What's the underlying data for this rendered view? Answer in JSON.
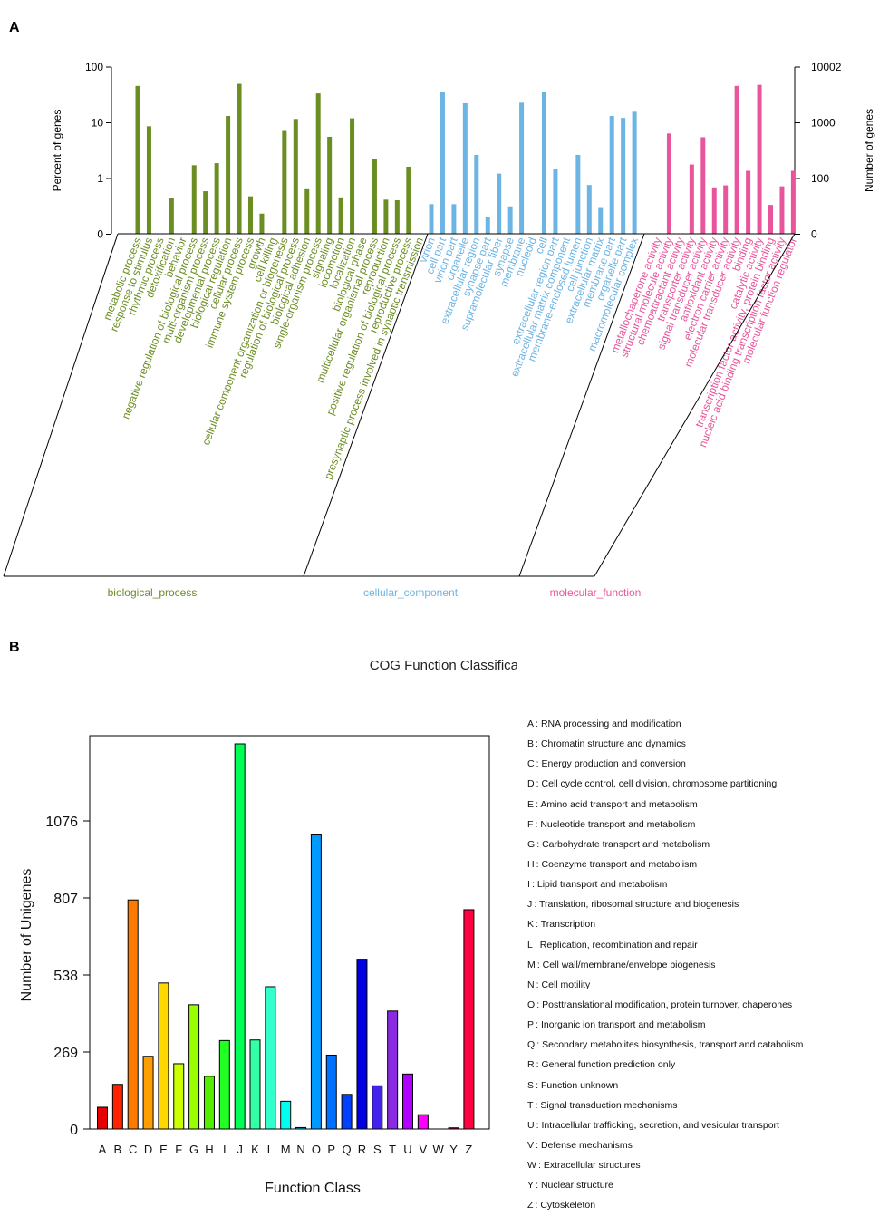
{
  "panel_a": {
    "letter": "A",
    "chart_data": {
      "type": "bar",
      "title": "",
      "ylabel": "Percent of genes",
      "ylabel_right": "Number of genes",
      "yscale": "log",
      "y_ticks": [
        "100",
        "10",
        "1",
        "0"
      ],
      "y_ticks_right": [
        "10002",
        "1000",
        "100",
        "0"
      ],
      "series": [
        {
          "name": "biological_process",
          "color": "#6b8e23",
          "categories": [
            "metabolic process",
            "response to stimulus",
            "rhythmic process",
            "detoxification",
            "behavior",
            "negative regulation of biological process",
            "multi-organism process",
            "developmental process",
            "biological regulation",
            "cellular process",
            "immune system process",
            "growth",
            "cell killing",
            "cellular component organization or biogenesis",
            "regulation of biological process",
            "biological adhesion",
            "single-organism process",
            "signaling",
            "locomotion",
            "localization",
            "biological phase",
            "multicellular organismal process",
            "reproduction",
            "positive regulation of biological process",
            "reproductive process",
            "presynaptic process involved in synaptic transmission"
          ],
          "values": [
            45,
            8.5,
            0,
            0.43,
            0,
            1.7,
            0.58,
            1.85,
            13,
            49,
            0.47,
            0.23,
            0,
            7,
            11.5,
            0.63,
            33,
            5.5,
            0.45,
            11.8,
            0,
            2.2,
            0.41,
            0.4,
            1.6,
            0
          ]
        },
        {
          "name": "cellular_component",
          "color": "#6cb4e4",
          "categories": [
            "virion",
            "cell part",
            "virion part",
            "organelle",
            "extracellular region",
            "synapse part",
            "supramolecular fiber",
            "synapse",
            "membrane",
            "nucleoid",
            "cell",
            "extracellular region part",
            "extracellular matrix component",
            "membrane-enclosed lumen",
            "cell junction",
            "extracellular matrix",
            "membrane part",
            "organelle part",
            "macromolecular complex"
          ],
          "values": [
            0.34,
            35,
            0.34,
            22,
            2.6,
            0.2,
            1.2,
            0.31,
            22.5,
            0,
            35.5,
            1.45,
            0,
            2.6,
            0.75,
            0.29,
            13,
            12,
            15.5
          ]
        },
        {
          "name": "molecular_function",
          "color": "#e8559c",
          "categories": [
            "metallochaperone activity",
            "structural molecule activity",
            "chemoattractant activity",
            "transporter activity",
            "signal transducer activity",
            "antioxidant activity",
            "electron carrier activity",
            "molecular transducer activity",
            "binding",
            "catalytic activity",
            "transcription factor activity, protein binding",
            "nucleic acid binding transcription factor activity",
            "molecular function regulator"
          ],
          "values": [
            0,
            6.3,
            0,
            1.75,
            5.4,
            0.68,
            0.74,
            45,
            1.35,
            47,
            0.33,
            0.71,
            1.35
          ]
        }
      ]
    }
  },
  "panel_b": {
    "letter": "B",
    "chart_data": {
      "type": "bar",
      "title": "COG Function Classification",
      "xlabel": "Function Class",
      "ylabel": "Number of Unigenes",
      "ylim": [
        0,
        1345
      ],
      "y_ticks": [
        0,
        269,
        538,
        807,
        1076
      ],
      "categories": [
        "A",
        "B",
        "C",
        "D",
        "E",
        "F",
        "G",
        "H",
        "I",
        "J",
        "K",
        "L",
        "M",
        "N",
        "O",
        "P",
        "Q",
        "R",
        "S",
        "T",
        "U",
        "V",
        "W",
        "Y",
        "Z"
      ],
      "values": [
        76,
        156,
        800,
        254,
        510,
        228,
        434,
        184,
        309,
        1345,
        311,
        497,
        97,
        5,
        1030,
        258,
        121,
        593,
        151,
        412,
        192,
        50,
        0,
        4,
        766
      ],
      "colors": [
        "#e60000",
        "#ff2200",
        "#ff7a00",
        "#ff9e00",
        "#ffd800",
        "#ccff00",
        "#99ff00",
        "#55ee00",
        "#22ff22",
        "#00ff55",
        "#33ffa6",
        "#33ffcc",
        "#00ffee",
        "#00ccff",
        "#0099ff",
        "#0070ff",
        "#0040ff",
        "#0000e0",
        "#4422ee",
        "#8a2be2",
        "#b000ff",
        "#ff00ff",
        "#ff0099",
        "#ff0066",
        "#ff0040"
      ],
      "legend": [
        "A :  RNA processing and modification",
        "B :  Chromatin structure and dynamics",
        "C :  Energy production and conversion",
        "D :  Cell cycle control, cell division, chromosome partitioning",
        "E :  Amino acid transport and metabolism",
        "F :  Nucleotide transport and metabolism",
        "G :  Carbohydrate transport and metabolism",
        "H :  Coenzyme transport and metabolism",
        "I :  Lipid transport and metabolism",
        "J :  Translation, ribosomal structure and biogenesis",
        "K :  Transcription",
        "L :  Replication, recombination and repair",
        "M :  Cell wall/membrane/envelope biogenesis",
        "N :  Cell motility",
        "O :  Posttranslational modification, protein turnover, chaperones",
        "P :  Inorganic ion transport and metabolism",
        "Q :  Secondary metabolites biosynthesis, transport and catabolism",
        "R :  General function prediction only",
        "S :  Function unknown",
        "T :  Signal transduction mechanisms",
        "U :  Intracellular trafficking, secretion, and vesicular transport",
        "V :  Defense mechanisms",
        "W :  Extracellular structures",
        "Y :  Nuclear structure",
        "Z :  Cytoskeleton"
      ]
    }
  }
}
